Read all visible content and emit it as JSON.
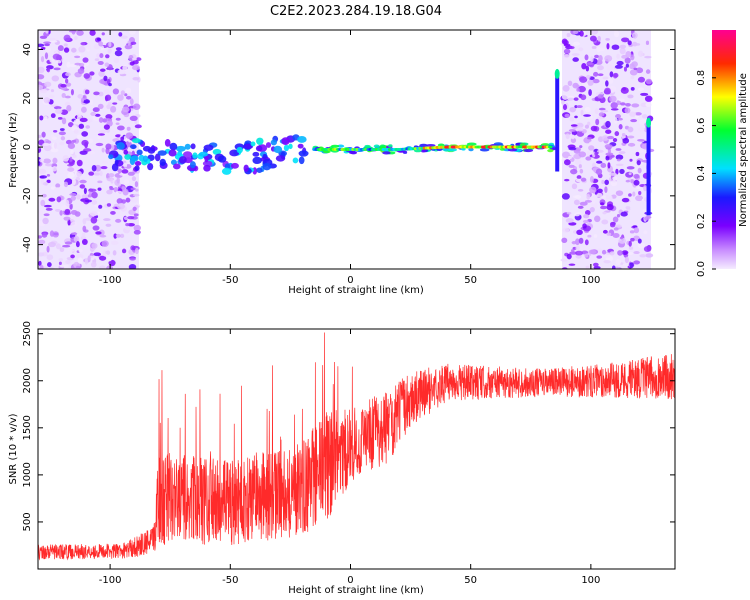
{
  "title": "C2E2.2023.284.19.18.G04",
  "chart_data": [
    {
      "type": "heatmap",
      "xlabel": "Height of straight line (km)",
      "ylabel": "Frequency (Hz)",
      "xlim": [
        -130,
        135
      ],
      "ylim": [
        -50,
        48
      ],
      "x_ticks": [
        -100,
        -50,
        0,
        50,
        100
      ],
      "y_ticks": [
        -40,
        -20,
        0,
        20,
        40
      ],
      "colorbar": {
        "label": "Normalized spectral amplitude",
        "range": [
          0,
          1
        ],
        "ticks": [
          0.0,
          0.2,
          0.4,
          0.6,
          0.8
        ]
      },
      "ridge": [
        {
          "x": -100,
          "y": -5
        },
        {
          "x": -85,
          "y": -2
        },
        {
          "x": -70,
          "y": -3
        },
        {
          "x": -55,
          "y": -4
        },
        {
          "x": -40,
          "y": -4
        },
        {
          "x": -25,
          "y": -1
        },
        {
          "x": -10,
          "y": -1
        },
        {
          "x": 0,
          "y": -1
        },
        {
          "x": 20,
          "y": -1
        },
        {
          "x": 40,
          "y": 0
        },
        {
          "x": 60,
          "y": 0
        },
        {
          "x": 75,
          "y": 0
        },
        {
          "x": 84,
          "y": 0
        }
      ],
      "noise_bands": [
        [
          -130,
          -88
        ],
        [
          88,
          125
        ]
      ],
      "features": [
        {
          "x": 86,
          "y_top": 30,
          "y_bottom": -10
        },
        {
          "x": 124,
          "y_top": 10,
          "y_bottom": -28
        }
      ],
      "grid": false
    },
    {
      "type": "line",
      "xlabel": "Height of straight line (km)",
      "ylabel": "SNR (10 * v/v)",
      "xlim": [
        -130,
        135
      ],
      "ylim": [
        0,
        2550
      ],
      "x_ticks": [
        -100,
        -50,
        0,
        50,
        100
      ],
      "y_ticks": [
        500,
        1000,
        1500,
        2000,
        2500
      ],
      "color": "#ff2a2a",
      "envelope": [
        {
          "x": -130,
          "baseline": 180,
          "amplitude": 80
        },
        {
          "x": -95,
          "baseline": 190,
          "amplitude": 80
        },
        {
          "x": -82,
          "baseline": 300,
          "amplitude": 150
        },
        {
          "x": -80,
          "baseline": 750,
          "amplitude": 500
        },
        {
          "x": -50,
          "baseline": 700,
          "amplitude": 450
        },
        {
          "x": -20,
          "baseline": 850,
          "amplitude": 500
        },
        {
          "x": -10,
          "baseline": 1100,
          "amplitude": 600
        },
        {
          "x": 0,
          "baseline": 1300,
          "amplitude": 400
        },
        {
          "x": 15,
          "baseline": 1500,
          "amplitude": 400
        },
        {
          "x": 25,
          "baseline": 1800,
          "amplitude": 300
        },
        {
          "x": 40,
          "baseline": 1980,
          "amplitude": 200
        },
        {
          "x": 80,
          "baseline": 1980,
          "amplitude": 150
        },
        {
          "x": 105,
          "baseline": 2000,
          "amplitude": 180
        },
        {
          "x": 135,
          "baseline": 2050,
          "amplitude": 250
        }
      ],
      "grid": false
    }
  ]
}
